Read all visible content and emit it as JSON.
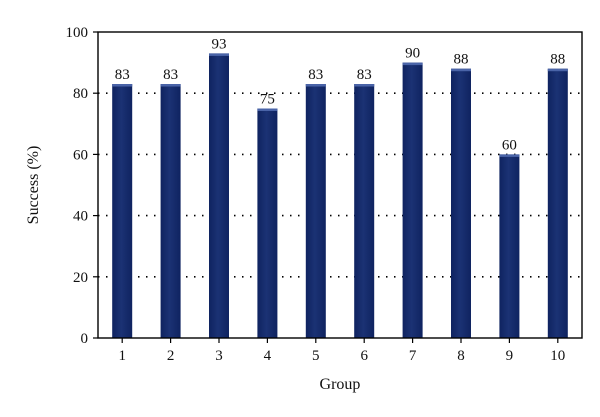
{
  "chart_data": {
    "type": "bar",
    "categories": [
      "1",
      "2",
      "3",
      "4",
      "5",
      "6",
      "7",
      "8",
      "9",
      "10"
    ],
    "values": [
      83,
      83,
      93,
      75,
      83,
      83,
      90,
      88,
      60,
      88
    ],
    "data_labels": [
      "83",
      "83",
      "93",
      "75",
      "83",
      "83",
      "90",
      "88",
      "60",
      "88"
    ],
    "xlabel": "Group",
    "ylabel": "Success (%)",
    "ylim": [
      0,
      100
    ],
    "yticks": [
      "0",
      "20",
      "40",
      "60",
      "80",
      "100"
    ],
    "grid": "horizontal dotted",
    "bar_color": "#142a6b",
    "bar_highlight": "#4a64a8"
  }
}
